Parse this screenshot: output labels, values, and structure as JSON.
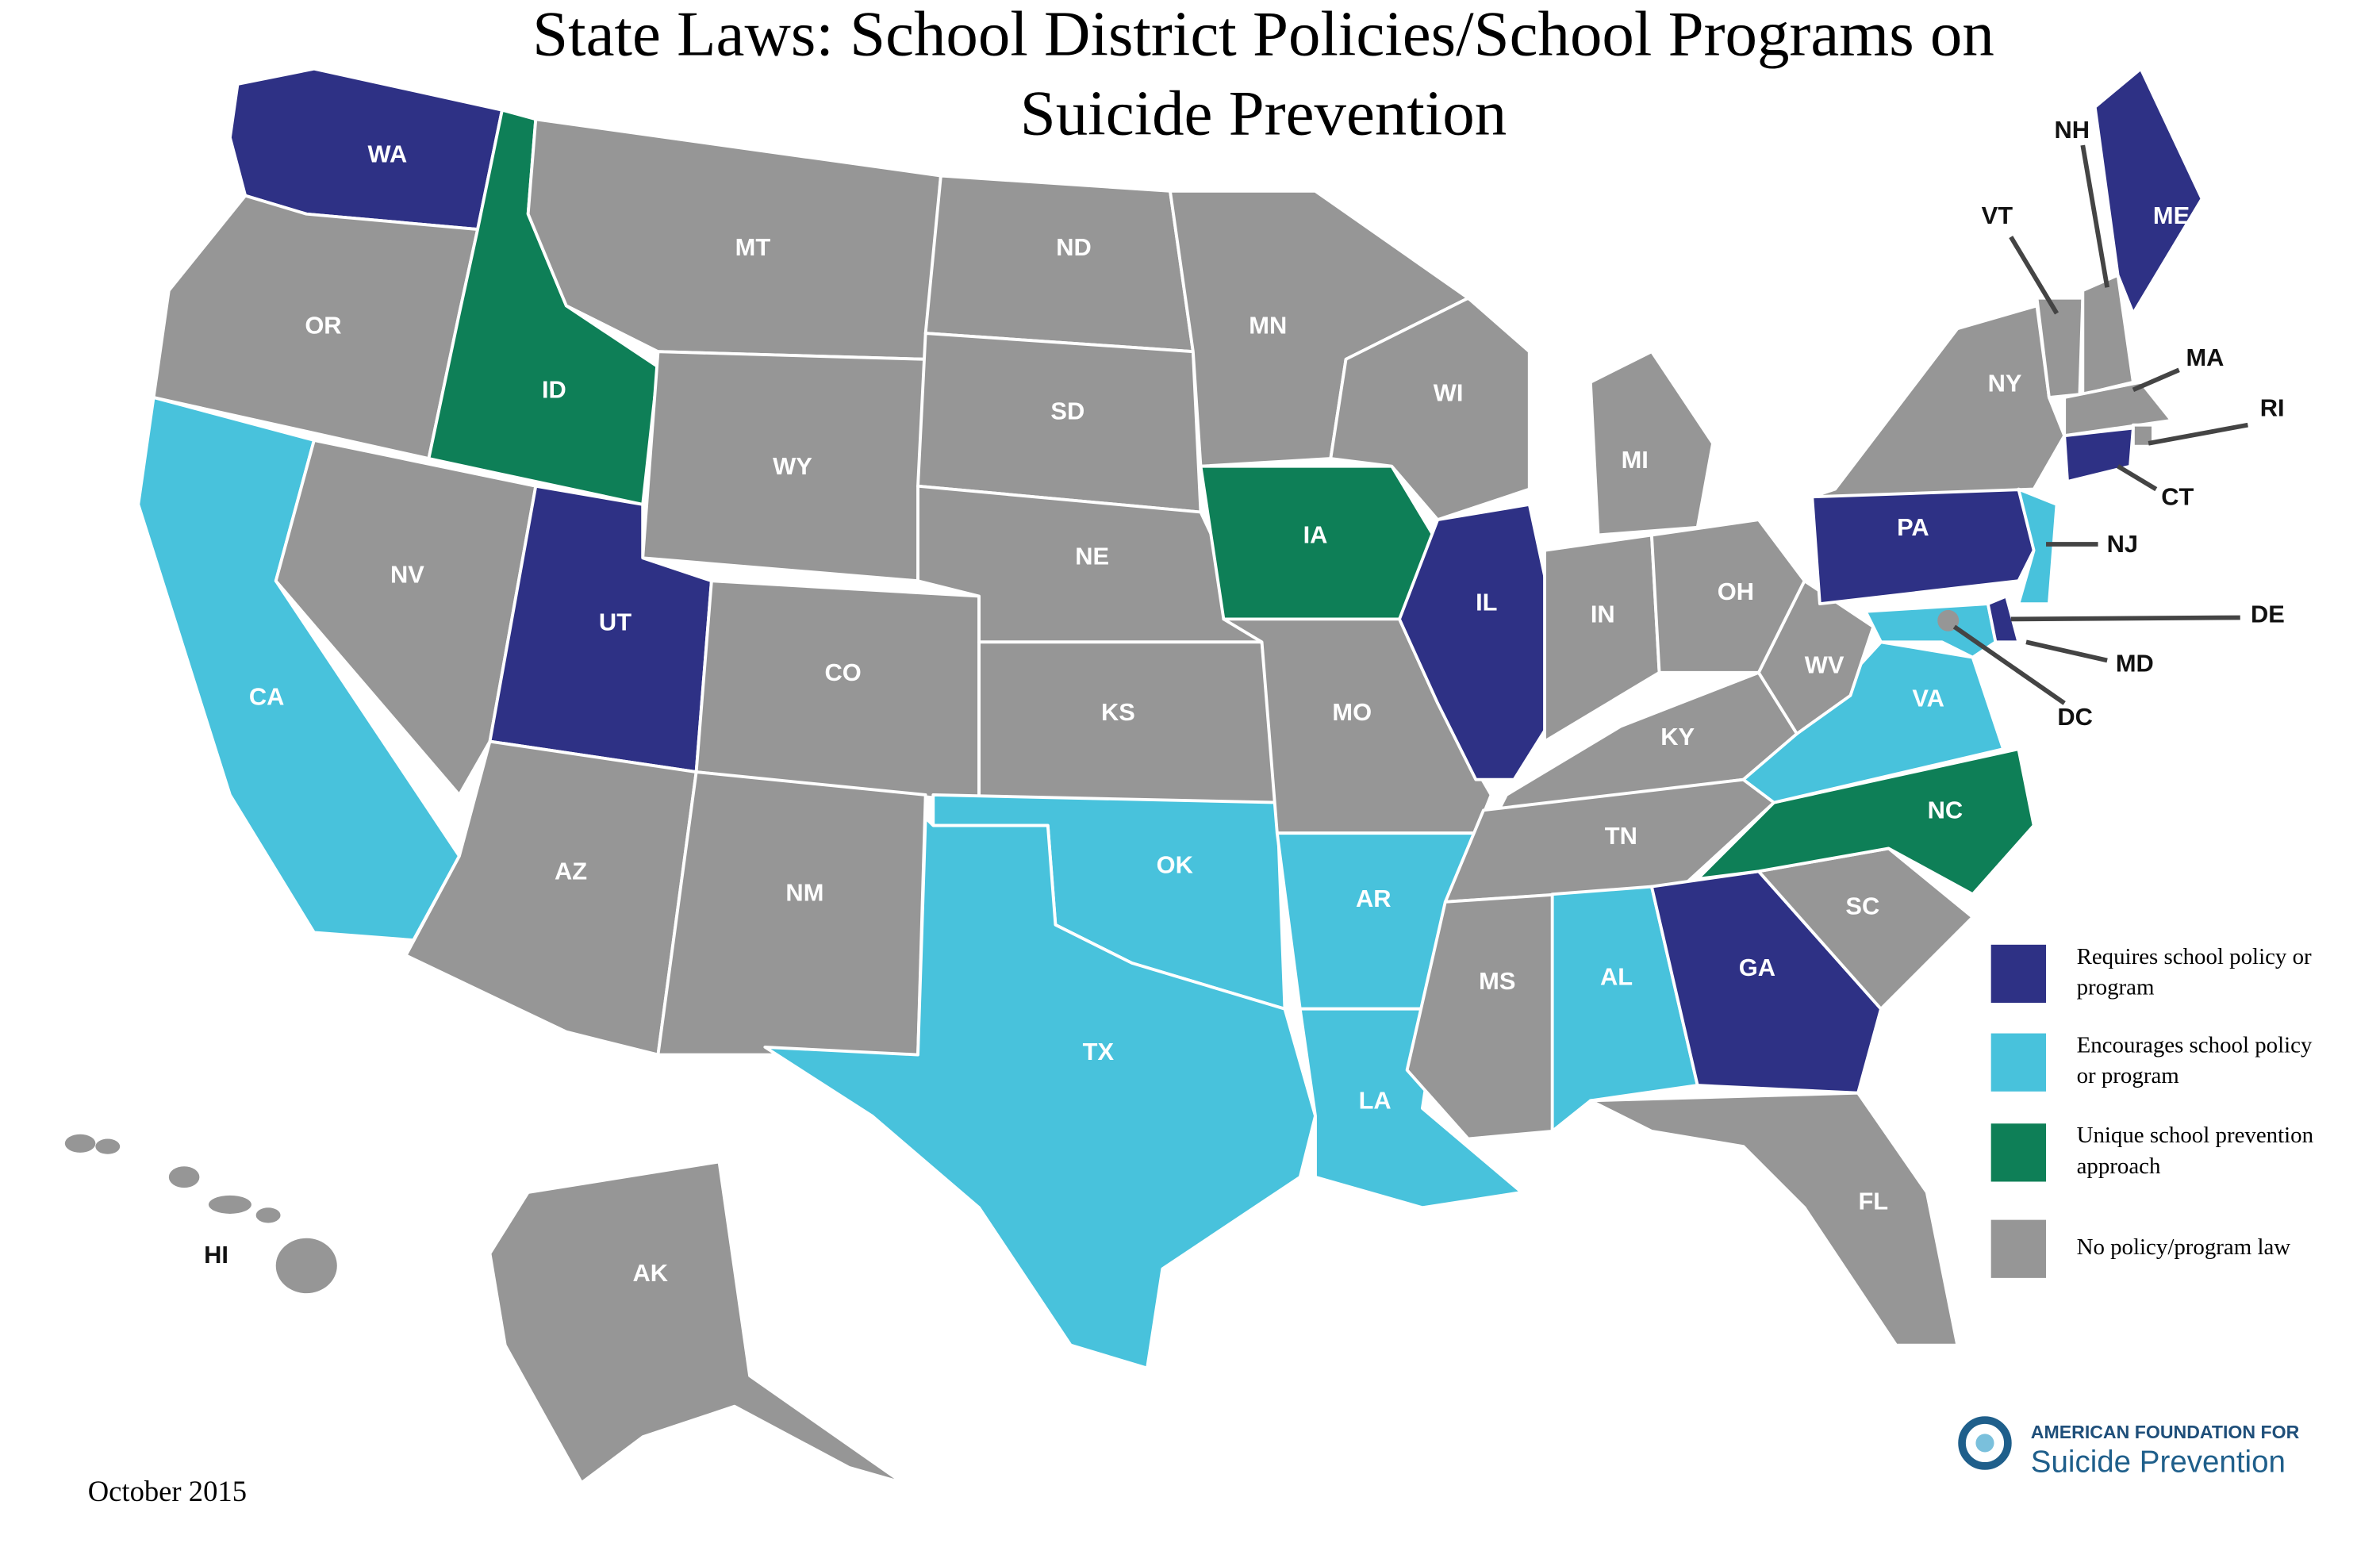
{
  "title": [
    "State Laws: School District Policies/School Programs on",
    "Suicide Prevention"
  ],
  "legend": [
    {
      "label": [
        "Requires school policy or",
        "program"
      ],
      "color": "#2e3185",
      "states": [
        "WA",
        "UT",
        "IL",
        "PA",
        "GA",
        "ME",
        "CT",
        "DE"
      ]
    },
    {
      "label": [
        "Encourages school policy",
        "or program"
      ],
      "color": "#48c2dc",
      "states": [
        "CA",
        "TX",
        "OK",
        "AR",
        "LA",
        "AL",
        "VA",
        "NJ",
        "MD"
      ]
    },
    {
      "label": [
        "Unique school prevention",
        "approach"
      ],
      "color": "#0e7f57",
      "states": [
        "ID",
        "IA",
        "NC"
      ]
    },
    {
      "label": [
        "No policy/program law"
      ],
      "color": "#969696",
      "states": [
        "OR",
        "MT",
        "ND",
        "SD",
        "MN",
        "WI",
        "MI",
        "NY",
        "VT",
        "NH",
        "MA",
        "RI",
        "NV",
        "WY",
        "NE",
        "CO",
        "KS",
        "MO",
        "IN",
        "OH",
        "KY",
        "WV",
        "TN",
        "MS",
        "SC",
        "FL",
        "AZ",
        "NM",
        "AK",
        "HI",
        "DC"
      ]
    }
  ],
  "date": "October 2015",
  "logo": {
    "line1": "AMERICAN FOUNDATION FOR",
    "line2": "Suicide Prevention"
  }
}
